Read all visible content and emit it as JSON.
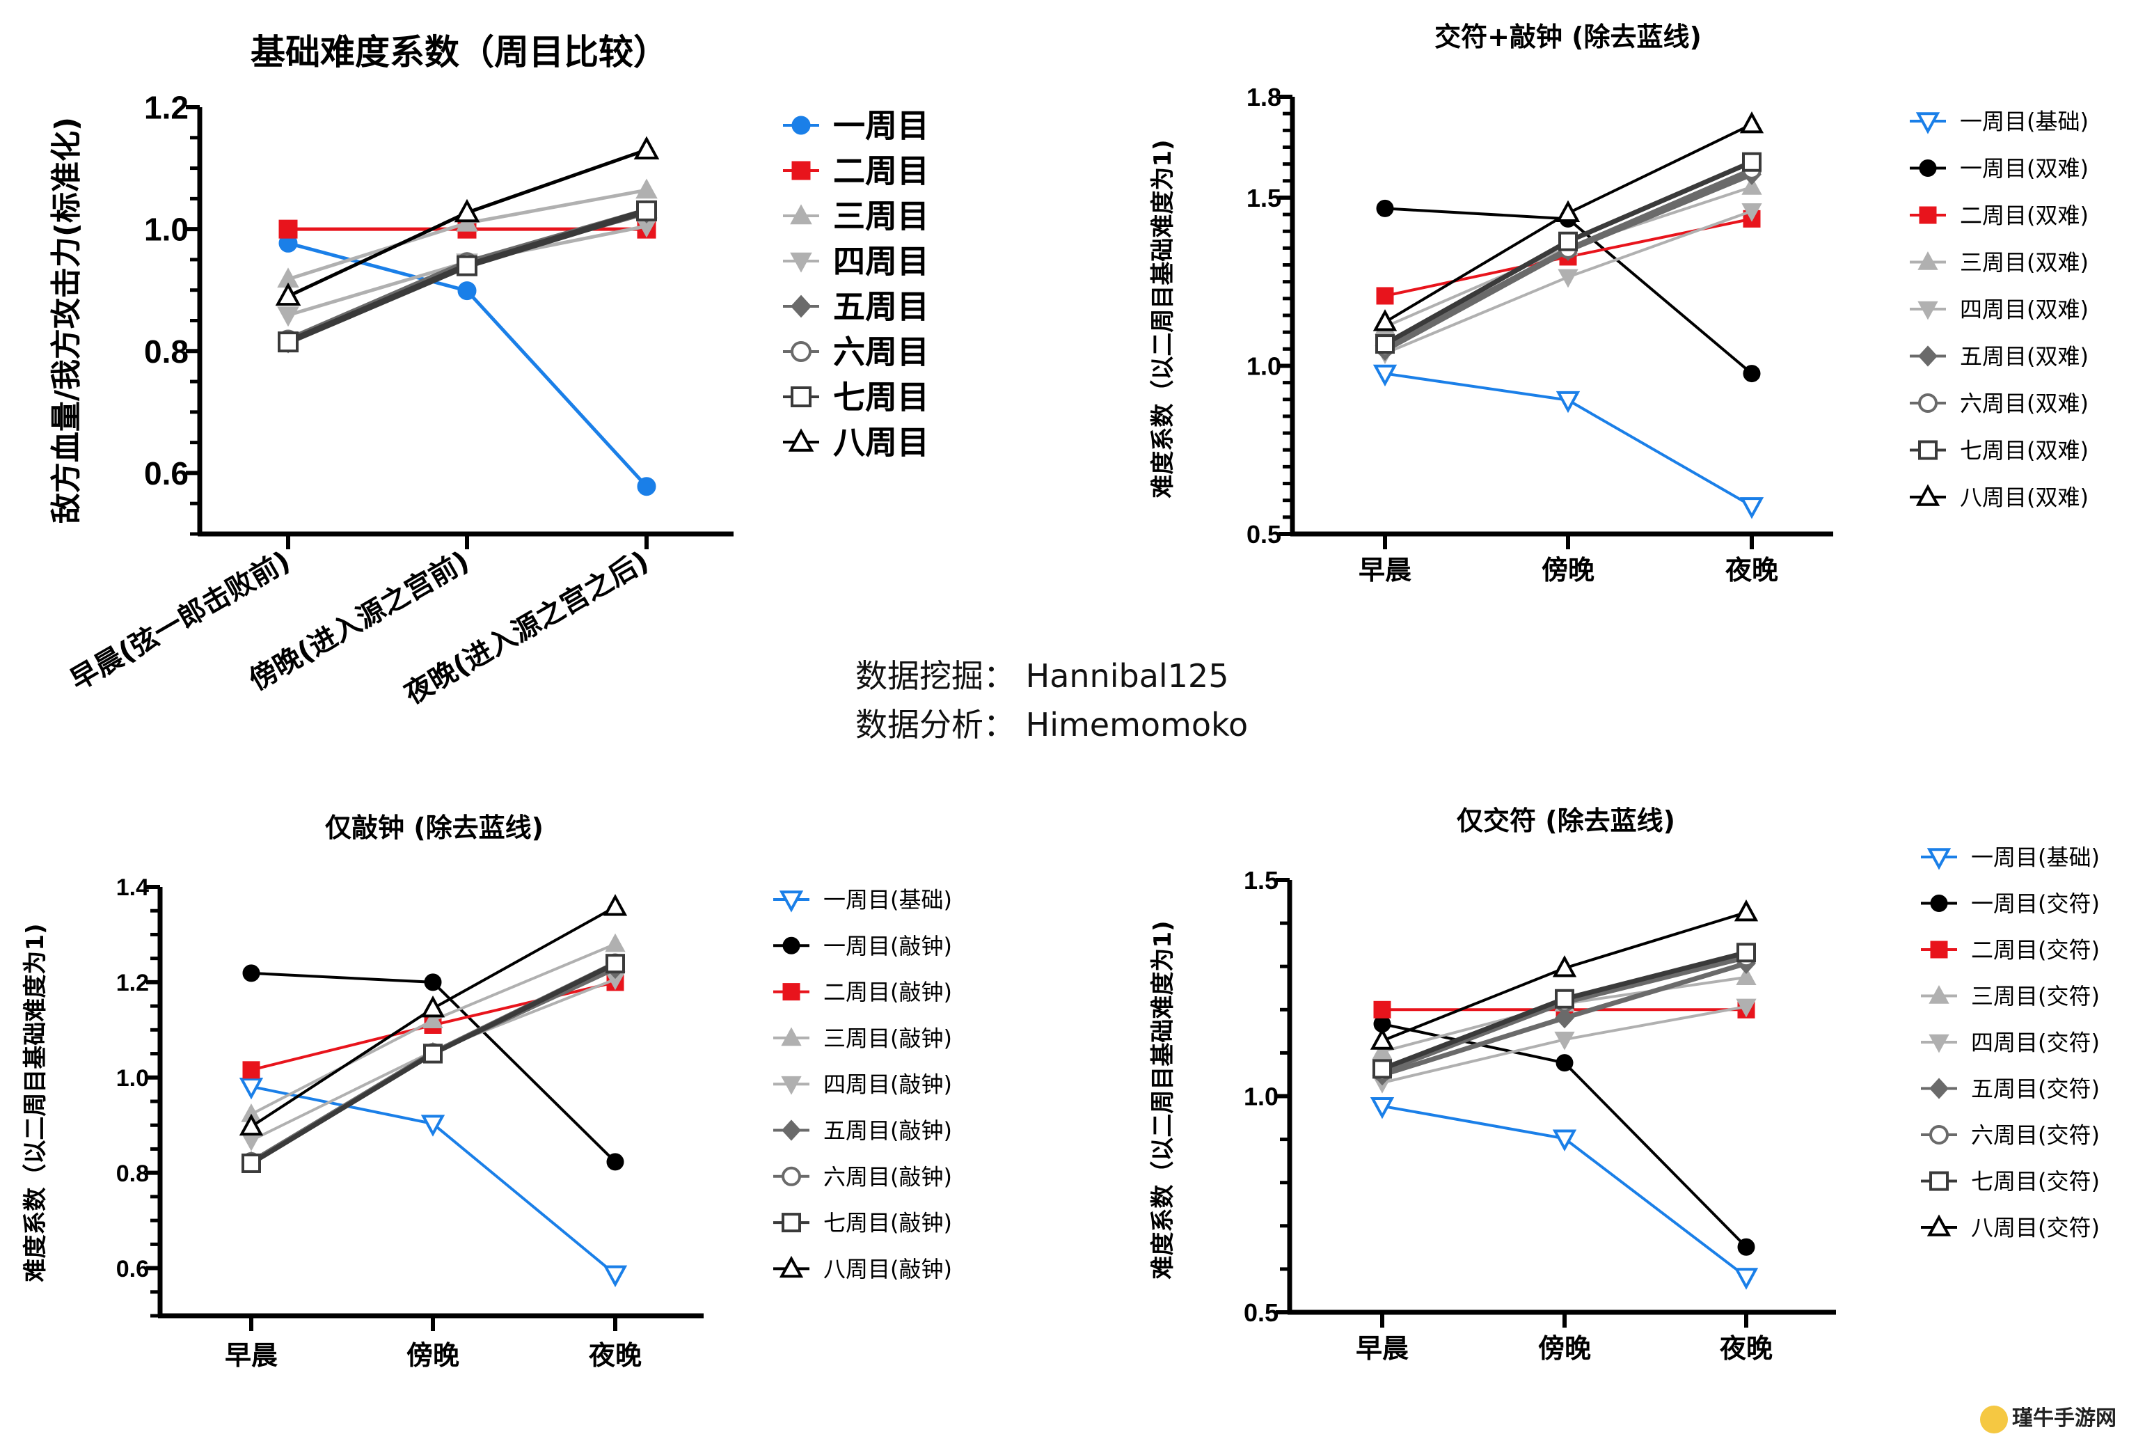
{
  "credits": {
    "mining": "数据挖掘：  Hannibal125",
    "analysis": "数据分析：  Himemomoko"
  },
  "watermark": "瑾牛手游网",
  "chart_data": [
    {
      "type": "line",
      "title": "基础难度系数（周目比较）",
      "ylabel": "敌方血量/我方攻击力(标准化)",
      "categories": [
        "早晨(弦一郎击败前)",
        "傍晚(进入源之宫前)",
        "夜晚(进入源之宫之后)"
      ],
      "ylim": [
        0.5,
        1.2
      ],
      "yticks": [
        0.6,
        0.8,
        1.0,
        1.2
      ],
      "tick_labels": [
        "0.6",
        "0.8",
        "1.0",
        "1.2"
      ],
      "grid": false,
      "legend": "right",
      "series": [
        {
          "name": "一周目",
          "values": [
            0.977,
            0.899,
            0.578
          ],
          "color": "#1a7fe8",
          "marker": "circle-filled"
        },
        {
          "name": "二周目",
          "values": [
            1.0,
            1.0,
            1.0
          ],
          "color": "#e8141c",
          "marker": "square-filled"
        },
        {
          "name": "三周目",
          "values": [
            0.918,
            1.01,
            1.064
          ],
          "color": "#b0b0b0",
          "marker": "triangle-up-filled"
        },
        {
          "name": "四周目",
          "values": [
            0.859,
            0.946,
            1.005
          ],
          "color": "#b0b0b0",
          "marker": "triangle-down-filled"
        },
        {
          "name": "五周目",
          "values": [
            0.815,
            0.944,
            1.028
          ],
          "color": "#6a6a6a",
          "marker": "diamond-filled"
        },
        {
          "name": "六周目",
          "values": [
            0.818,
            0.945,
            1.03
          ],
          "color": "#6a6a6a",
          "marker": "circle-open"
        },
        {
          "name": "七周目",
          "values": [
            0.815,
            0.94,
            1.03
          ],
          "color": "#3a3a3a",
          "marker": "square-open"
        },
        {
          "name": "八周目",
          "values": [
            0.89,
            1.027,
            1.13
          ],
          "color": "#000000",
          "marker": "triangle-up-open"
        }
      ]
    },
    {
      "type": "line",
      "title": "交符+敲钟 (除去蓝线)",
      "ylabel": "难度系数（以二周目基础难度为1)",
      "categories": [
        "早晨",
        "傍晚",
        "夜晚"
      ],
      "ylim": [
        0.5,
        1.8
      ],
      "yticks": [
        0.5,
        1.0,
        1.5,
        1.8
      ],
      "tick_labels": [
        "0.5",
        "1.0",
        "1.5",
        "1.8"
      ],
      "grid": false,
      "legend": "right",
      "series": [
        {
          "name": "一周目(基础)",
          "values": [
            0.977,
            0.898,
            0.583
          ],
          "color": "#1a7fe8",
          "marker": "triangle-down-open"
        },
        {
          "name": "一周目(双难)",
          "values": [
            1.468,
            1.437,
            0.977
          ],
          "color": "#000000",
          "marker": "circle-filled"
        },
        {
          "name": "二周目(双难)",
          "values": [
            1.208,
            1.324,
            1.437
          ],
          "color": "#e8141c",
          "marker": "square-filled"
        },
        {
          "name": "三周目(双难)",
          "values": [
            1.116,
            1.352,
            1.532
          ],
          "color": "#b0b0b0",
          "marker": "triangle-up-filled"
        },
        {
          "name": "四周目(双难)",
          "values": [
            1.037,
            1.264,
            1.46
          ],
          "color": "#b0b0b0",
          "marker": "triangle-down-filled"
        },
        {
          "name": "五周目(双难)",
          "values": [
            1.046,
            1.343,
            1.569
          ],
          "color": "#6a6a6a",
          "marker": "diamond-filled"
        },
        {
          "name": "六周目(双难)",
          "values": [
            1.056,
            1.347,
            1.583
          ],
          "color": "#6a6a6a",
          "marker": "circle-open"
        },
        {
          "name": "七周目(双难)",
          "values": [
            1.065,
            1.37,
            1.606
          ],
          "color": "#3a3a3a",
          "marker": "square-open"
        },
        {
          "name": "八周目(双难)",
          "values": [
            1.13,
            1.454,
            1.718
          ],
          "color": "#000000",
          "marker": "triangle-up-open"
        }
      ]
    },
    {
      "type": "line",
      "title": "仅敲钟 (除去蓝线)",
      "ylabel": "难度系数（以二周目基础难度为1)",
      "categories": [
        "早晨",
        "傍晚",
        "夜晚"
      ],
      "ylim": [
        0.5,
        1.4
      ],
      "yticks": [
        0.6,
        0.8,
        1.0,
        1.2,
        1.4
      ],
      "tick_labels": [
        "0.6",
        "0.8",
        "1.0",
        "1.2",
        "1.4"
      ],
      "grid": false,
      "legend": "right",
      "series": [
        {
          "name": "一周目(基础)",
          "values": [
            0.981,
            0.903,
            0.587
          ],
          "color": "#1a7fe8",
          "marker": "triangle-down-open"
        },
        {
          "name": "一周目(敲钟)",
          "values": [
            1.219,
            1.2,
            0.823
          ],
          "color": "#000000",
          "marker": "circle-filled"
        },
        {
          "name": "二周目(敲钟)",
          "values": [
            1.016,
            1.11,
            1.2
          ],
          "color": "#e8141c",
          "marker": "square-filled"
        },
        {
          "name": "三周目(敲钟)",
          "values": [
            0.923,
            1.12,
            1.28
          ],
          "color": "#b0b0b0",
          "marker": "triangle-up-filled"
        },
        {
          "name": "四周目(敲钟)",
          "values": [
            0.868,
            1.055,
            1.206
          ],
          "color": "#b0b0b0",
          "marker": "triangle-down-filled"
        },
        {
          "name": "五周目(敲钟)",
          "values": [
            0.823,
            1.052,
            1.229
          ],
          "color": "#6a6a6a",
          "marker": "diamond-filled"
        },
        {
          "name": "六周目(敲钟)",
          "values": [
            0.823,
            1.052,
            1.24
          ],
          "color": "#6a6a6a",
          "marker": "circle-open"
        },
        {
          "name": "七周目(敲钟)",
          "values": [
            0.82,
            1.05,
            1.239
          ],
          "color": "#3a3a3a",
          "marker": "square-open"
        },
        {
          "name": "八周目(敲钟)",
          "values": [
            0.897,
            1.145,
            1.358
          ],
          "color": "#000000",
          "marker": "triangle-up-open"
        }
      ]
    },
    {
      "type": "line",
      "title": "仅交符 (除去蓝线)",
      "ylabel": "难度系数（以二周目基础难度为1)",
      "categories": [
        "早晨",
        "傍晚",
        "夜晚"
      ],
      "ylim": [
        0.5,
        1.5
      ],
      "yticks": [
        0.5,
        1.0,
        1.5
      ],
      "tick_labels": [
        "0.5",
        "1.0",
        "1.5"
      ],
      "grid": false,
      "legend": "right",
      "series": [
        {
          "name": "一周目(基础)",
          "values": [
            0.977,
            0.902,
            0.582
          ],
          "color": "#1a7fe8",
          "marker": "triangle-down-open"
        },
        {
          "name": "一周目(交符)",
          "values": [
            1.167,
            1.077,
            0.651
          ],
          "color": "#000000",
          "marker": "circle-filled"
        },
        {
          "name": "二周目(交符)",
          "values": [
            1.2,
            1.2,
            1.2
          ],
          "color": "#e8141c",
          "marker": "square-filled"
        },
        {
          "name": "三周目(交符)",
          "values": [
            1.103,
            1.214,
            1.275
          ],
          "color": "#b0b0b0",
          "marker": "triangle-up-filled"
        },
        {
          "name": "四周目(交符)",
          "values": [
            1.031,
            1.131,
            1.207
          ],
          "color": "#b0b0b0",
          "marker": "triangle-down-filled"
        },
        {
          "name": "五周目(交符)",
          "values": [
            1.049,
            1.181,
            1.307
          ],
          "color": "#6a6a6a",
          "marker": "diamond-filled"
        },
        {
          "name": "六周目(交符)",
          "values": [
            1.056,
            1.217,
            1.321
          ],
          "color": "#6a6a6a",
          "marker": "circle-open"
        },
        {
          "name": "七周目(交符)",
          "values": [
            1.063,
            1.225,
            1.332
          ],
          "color": "#3a3a3a",
          "marker": "square-open"
        },
        {
          "name": "八周目(交符)",
          "values": [
            1.128,
            1.296,
            1.425
          ],
          "color": "#000000",
          "marker": "triangle-up-open"
        }
      ]
    }
  ]
}
